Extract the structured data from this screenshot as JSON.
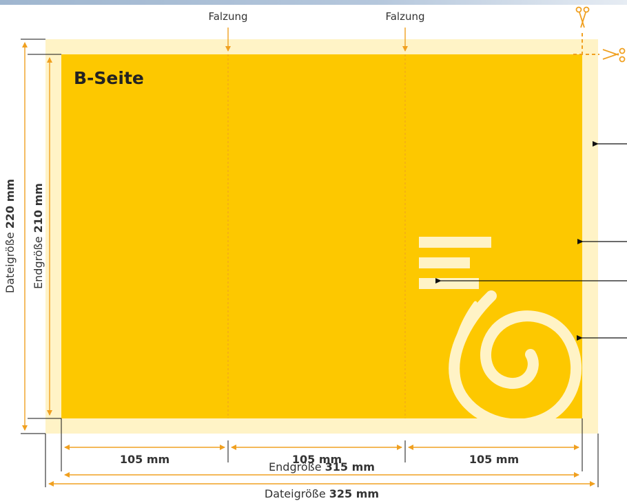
{
  "fold_labels": [
    "Falzung",
    "Falzung"
  ],
  "side_label": "B-Seite",
  "panel_widths": [
    "105 mm",
    "105 mm",
    "105 mm"
  ],
  "final_width": {
    "prefix": "Endgröße ",
    "value": "315 mm"
  },
  "file_width": {
    "prefix": "Dateigröße ",
    "value": "325 mm"
  },
  "final_height": {
    "prefix": "Endgröße ",
    "value": "210 mm"
  },
  "file_height": {
    "prefix": "Dateigröße ",
    "value": "220 mm"
  },
  "colors": {
    "yellow": "#fdc800",
    "bleed": "#fff3c6",
    "dimension": "#f0a020",
    "text": "#333333"
  },
  "icons": [
    "scissors-icon",
    "scissors-icon"
  ]
}
